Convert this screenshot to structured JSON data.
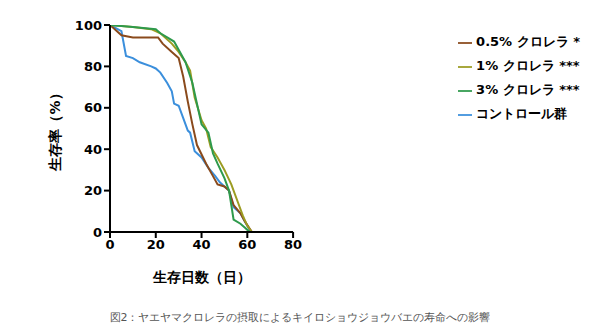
{
  "chart_data": {
    "type": "line",
    "caption": "図2：ヤエヤマクロレラの摂取によるキイロショウジョウバエの寿命への影響",
    "x_label": "生存日数（日）",
    "y_label": "生存率（%）",
    "xlim": [
      0,
      80
    ],
    "xticks": [
      0,
      20,
      40,
      60,
      80
    ],
    "ylim": [
      0,
      100
    ],
    "yticks": [
      0,
      20,
      40,
      60,
      80,
      100
    ],
    "grid": false,
    "legend": "upper right",
    "series": [
      {
        "name": "コントロール群",
        "color": "#3b8fdc",
        "x": [
          0,
          5,
          7,
          10,
          13,
          18,
          20,
          22,
          25,
          27,
          28,
          30,
          32,
          34,
          35,
          37,
          40,
          43,
          46,
          48,
          50,
          52,
          54,
          57,
          59,
          61,
          62
        ],
        "values": [
          100,
          97,
          85,
          84,
          82,
          80,
          79,
          77,
          72,
          68,
          62,
          61,
          55,
          49,
          48,
          39,
          36,
          31,
          27,
          24,
          22,
          20,
          12,
          9,
          5,
          1,
          0
        ]
      },
      {
        "name": "0.5% クロレラ *",
        "color": "#8a4a1c",
        "x": [
          0,
          5,
          10,
          18,
          21,
          23,
          27,
          30,
          32,
          34,
          36,
          38,
          42,
          45,
          47,
          50,
          52,
          54,
          57,
          59,
          62
        ],
        "values": [
          100,
          95,
          94,
          94,
          94,
          91,
          87,
          84,
          75,
          63,
          52,
          42,
          33,
          27,
          23,
          22,
          20,
          13,
          9,
          5,
          0
        ]
      },
      {
        "name": "1% クロレラ ***",
        "color": "#9c9c22",
        "x": [
          0,
          10,
          18,
          22,
          27,
          30,
          33,
          35,
          37,
          40,
          42,
          44,
          47,
          48,
          50,
          53,
          56,
          58,
          60,
          62
        ],
        "values": [
          100,
          99,
          98,
          96,
          91,
          87,
          82,
          78,
          65,
          54,
          50,
          41,
          36,
          34,
          30,
          23,
          14,
          8,
          3,
          0
        ]
      },
      {
        "name": "3% クロレラ ***",
        "color": "#2e9a4c",
        "x": [
          0,
          10,
          20,
          22,
          25,
          28,
          30,
          33,
          36,
          38,
          40,
          43,
          45,
          47,
          50,
          52,
          54,
          57,
          59,
          61
        ],
        "values": [
          100,
          99,
          98,
          96,
          94,
          92,
          88,
          82,
          72,
          62,
          52,
          48,
          38,
          33,
          26,
          20,
          6,
          4,
          2,
          0
        ]
      }
    ]
  }
}
